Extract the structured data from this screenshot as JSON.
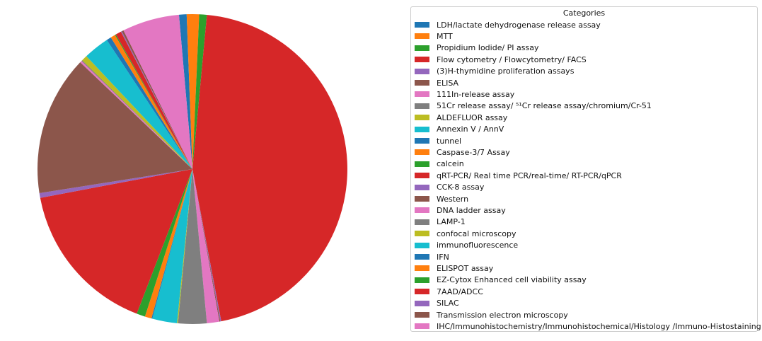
{
  "chart_data": {
    "type": "pie",
    "legend_title": "Categories",
    "legend_position": "right",
    "start_angle_deg": 95,
    "direction": "clockwise",
    "slices": [
      {
        "label": "LDH/lactate dehydrogenase release assay",
        "value": 0.8,
        "color": "#1f77b4"
      },
      {
        "label": "MTT",
        "value": 1.3,
        "color": "#ff7f0e"
      },
      {
        "label": "Propidium Iodide/ PI assay",
        "value": 0.8,
        "color": "#2ca02c"
      },
      {
        "label": "Flow cytometry / Flowcytometry/ FACS",
        "value": 45.9,
        "color": "#d62728"
      },
      {
        "label": "(3)H-thymidine proliferation assays",
        "value": 0.1,
        "color": "#9467bd"
      },
      {
        "label": "ELISA",
        "value": 0.1,
        "color": "#8c564b"
      },
      {
        "label": "111In-release assay",
        "value": 1.3,
        "color": "#e377c2"
      },
      {
        "label": "51Cr release assay/ ⁵¹Cr release assay/chromium/Cr-51",
        "value": 3.0,
        "color": "#7f7f7f"
      },
      {
        "label": "ALDEFLUOR assay",
        "value": 0.1,
        "color": "#bcbd22"
      },
      {
        "label": "Annexin V / AnnV",
        "value": 2.6,
        "color": "#17becf"
      },
      {
        "label": "tunnel",
        "value": 0.1,
        "color": "#1f77b4"
      },
      {
        "label": "Caspase-3/7 Assay",
        "value": 0.7,
        "color": "#ff7f0e"
      },
      {
        "label": "calcein",
        "value": 0.9,
        "color": "#2ca02c"
      },
      {
        "label": "qRT-PCR/ Real time PCR/real-time/ RT-PCR/qPCR",
        "value": 16.3,
        "color": "#d62728"
      },
      {
        "label": "CCK-8 assay",
        "value": 0.5,
        "color": "#9467bd"
      },
      {
        "label": "Western",
        "value": 14.7,
        "color": "#8c564b"
      },
      {
        "label": "DNA ladder assay",
        "value": 0.2,
        "color": "#e377c2"
      },
      {
        "label": "LAMP-1",
        "value": 0.1,
        "color": "#7f7f7f"
      },
      {
        "label": "confocal microscopy",
        "value": 0.6,
        "color": "#bcbd22"
      },
      {
        "label": "immunofluorescence",
        "value": 2.7,
        "color": "#17becf"
      },
      {
        "label": "IFN",
        "value": 0.5,
        "color": "#1f77b4"
      },
      {
        "label": "ELISPOT assay",
        "value": 0.5,
        "color": "#ff7f0e"
      },
      {
        "label": "EZ-Cytox Enhanced cell viability assay",
        "value": 0.1,
        "color": "#2ca02c"
      },
      {
        "label": "7AAD/ADCC",
        "value": 0.6,
        "color": "#d62728"
      },
      {
        "label": "SILAC",
        "value": 0.1,
        "color": "#9467bd"
      },
      {
        "label": "Transmission electron microscopy",
        "value": 0.2,
        "color": "#8c564b"
      },
      {
        "label": "IHC/Immunohistochemistry/Immunohistochemical/Histology /Immuno-Histostaining",
        "value": 6.0,
        "color": "#e377c2"
      }
    ]
  }
}
